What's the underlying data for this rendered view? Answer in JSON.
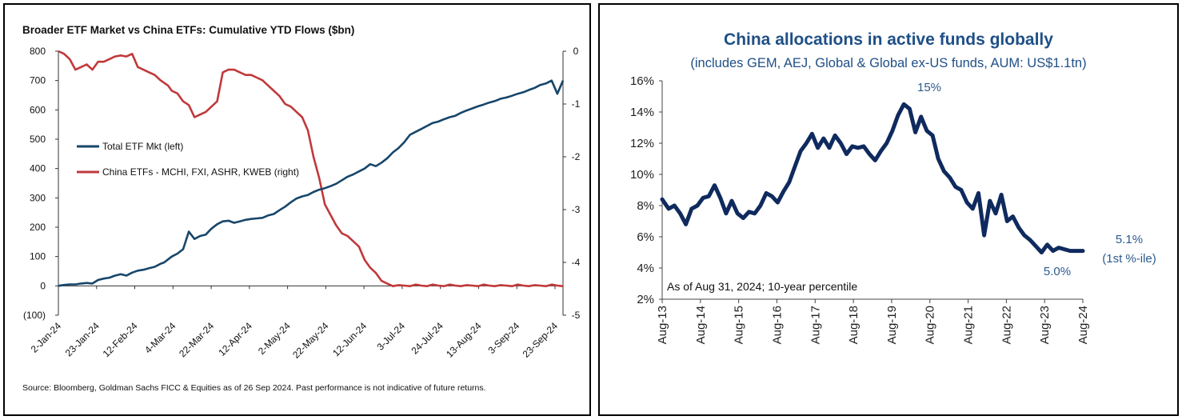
{
  "colors": {
    "navy": "#17466a",
    "red": "#c0393b",
    "right_line": "#0f2a5e",
    "right_title": "#1f4f86",
    "right_annot": "#2c5a8f"
  },
  "chart_data": [
    {
      "type": "line",
      "title": "Broader ETF Market vs China ETFs: Cumulative YTD Flows ($bn)",
      "x_tick_labels": [
        "2-Jan-24",
        "23-Jan-24",
        "12-Feb-24",
        "4-Mar-24",
        "22-Mar-24",
        "12-Apr-24",
        "2-May-24",
        "22-May-24",
        "12-Jun-24",
        "3-Jul-24",
        "24-Jul-24",
        "13-Aug-24",
        "3-Sep-24",
        "23-Sep-24"
      ],
      "y_left": {
        "ticks": [
          "800",
          "700",
          "600",
          "500",
          "400",
          "300",
          "200",
          "100",
          "0",
          "(100)"
        ],
        "ylim": [
          -100,
          800
        ]
      },
      "y_right": {
        "ticks": [
          "0",
          "-1",
          "-2",
          "-3",
          "-4",
          "-5"
        ],
        "ylim": [
          -5,
          0
        ]
      },
      "legend": [
        "Total ETF Mkt (left)",
        "China ETFs - MCHI, FXI, ASHR, KWEB (right)"
      ],
      "source": "Source: Bloomberg, Goldman Sachs FICC & Equities as of 26 Sep 2024. Past performance is not indicative of future returns.",
      "series": [
        {
          "name": "Total ETF Mkt (left)",
          "axis": "left",
          "x": [
            0,
            3,
            6,
            9,
            12,
            15,
            18,
            21,
            24,
            27,
            30,
            33,
            36,
            39,
            42,
            45,
            48,
            51,
            54,
            56,
            58,
            60,
            63,
            66,
            69,
            72,
            75,
            78,
            81,
            84,
            87,
            90,
            93,
            96,
            99,
            102,
            105,
            108,
            111,
            114,
            117,
            120,
            123,
            126,
            129,
            132,
            135,
            138,
            141,
            144,
            147,
            150,
            153,
            156,
            159,
            162,
            165,
            168,
            171,
            174,
            177,
            180,
            183,
            186,
            189,
            192,
            195,
            198,
            201,
            204,
            207,
            210,
            213,
            216,
            219,
            222,
            225,
            228,
            231,
            234,
            237,
            240,
            243,
            246,
            249,
            252,
            255,
            258,
            261,
            264,
            267
          ],
          "values": [
            0,
            3,
            5,
            5,
            8,
            10,
            8,
            20,
            25,
            28,
            35,
            40,
            35,
            45,
            52,
            55,
            60,
            65,
            75,
            80,
            90,
            100,
            110,
            125,
            185,
            160,
            170,
            175,
            195,
            210,
            220,
            222,
            215,
            220,
            225,
            228,
            230,
            232,
            240,
            245,
            258,
            270,
            285,
            298,
            305,
            310,
            320,
            328,
            333,
            340,
            348,
            360,
            372,
            380,
            390,
            400,
            415,
            408,
            420,
            435,
            455,
            470,
            490,
            515,
            525,
            535,
            545,
            555,
            560,
            568,
            575,
            580,
            590,
            598,
            605,
            612,
            618,
            625,
            630,
            638,
            642,
            648,
            655,
            660,
            668,
            675,
            685,
            690,
            700,
            655,
            700
          ]
        },
        {
          "name": "China ETFs - MCHI, FXI, ASHR, KWEB (right)",
          "axis": "right",
          "x": [
            0,
            3,
            6,
            9,
            12,
            15,
            18,
            21,
            24,
            27,
            30,
            33,
            36,
            39,
            42,
            45,
            48,
            51,
            54,
            56,
            58,
            60,
            63,
            66,
            69,
            72,
            75,
            78,
            81,
            84,
            87,
            90,
            93,
            96,
            99,
            102,
            105,
            108,
            111,
            114,
            117,
            120,
            123,
            126,
            129,
            132,
            135,
            138,
            141,
            144,
            147,
            150,
            153,
            156,
            159,
            162,
            165,
            168,
            171,
            174,
            177,
            180,
            183,
            186,
            189,
            192,
            195,
            198,
            201,
            204,
            207,
            210,
            213,
            216,
            219,
            222,
            225,
            228,
            231,
            234,
            237,
            240,
            243,
            246,
            249,
            252,
            255,
            258,
            261,
            264,
            267
          ],
          "values": [
            0,
            -0.05,
            -0.15,
            -0.35,
            -0.3,
            -0.25,
            -0.35,
            -0.2,
            -0.2,
            -0.15,
            -0.1,
            -0.08,
            -0.1,
            -0.05,
            -0.3,
            -0.35,
            -0.4,
            -0.45,
            -0.55,
            -0.6,
            -0.65,
            -0.75,
            -0.8,
            -0.95,
            -1.02,
            -1.25,
            -1.2,
            -1.15,
            -1.05,
            -0.95,
            -0.4,
            -0.35,
            -0.35,
            -0.4,
            -0.45,
            -0.45,
            -0.5,
            -0.55,
            -0.65,
            -0.75,
            -0.85,
            -1.0,
            -1.05,
            -1.15,
            -1.25,
            -1.5,
            -2.0,
            -2.4,
            -2.9,
            -3.1,
            -3.3,
            -3.45,
            -3.5,
            -3.6,
            -3.7,
            -3.95,
            -4.1,
            -4.2,
            -4.35,
            -4.4,
            -4.45,
            -4.43,
            -4.44,
            -4.45,
            -4.42,
            -4.44,
            -4.45,
            -4.42,
            -4.44,
            -4.45,
            -4.42,
            -4.44,
            -4.45,
            -4.43,
            -4.44,
            -4.45,
            -4.42,
            -4.44,
            -4.45,
            -4.43,
            -4.44,
            -4.45,
            -4.42,
            -4.44,
            -4.45,
            -4.43,
            -4.44,
            -4.45,
            -4.42,
            -4.44,
            -4.45
          ]
        }
      ]
    },
    {
      "type": "line",
      "title": "China allocations in active funds globally",
      "subtitle": "(includes GEM, AEJ, Global & Global ex-US funds, AUM: US$1.1tn)",
      "x_tick_labels": [
        "Aug-13",
        "Aug-14",
        "Aug-15",
        "Aug-16",
        "Aug-17",
        "Aug-18",
        "Aug-19",
        "Aug-20",
        "Aug-21",
        "Aug-22",
        "Aug-23",
        "Aug-24"
      ],
      "y_ticks": [
        "16%",
        "14%",
        "12%",
        "10%",
        "8%",
        "6%",
        "4%",
        "2%"
      ],
      "ylim": [
        2,
        16
      ],
      "note": "As of Aug 31, 2024; 10-year percentile",
      "annotations": {
        "peak": "15%",
        "low": "5.0%",
        "last_value": "5.1%",
        "last_pct": "(1st %-ile)"
      },
      "series": [
        {
          "name": "China allocation (%)",
          "x": [
            2013.58,
            2013.75,
            2013.9,
            2014.05,
            2014.2,
            2014.35,
            2014.5,
            2014.65,
            2014.8,
            2014.95,
            2015.1,
            2015.25,
            2015.4,
            2015.55,
            2015.7,
            2015.85,
            2016.0,
            2016.15,
            2016.3,
            2016.45,
            2016.6,
            2016.75,
            2016.9,
            2017.05,
            2017.2,
            2017.35,
            2017.5,
            2017.65,
            2017.8,
            2017.95,
            2018.1,
            2018.25,
            2018.4,
            2018.55,
            2018.7,
            2018.85,
            2019.0,
            2019.15,
            2019.3,
            2019.45,
            2019.6,
            2019.75,
            2019.9,
            2020.05,
            2020.2,
            2020.35,
            2020.5,
            2020.65,
            2020.8,
            2020.95,
            2021.1,
            2021.25,
            2021.4,
            2021.55,
            2021.7,
            2021.85,
            2022.0,
            2022.15,
            2022.3,
            2022.45,
            2022.6,
            2022.75,
            2022.9,
            2023.05,
            2023.2,
            2023.35,
            2023.5,
            2023.65,
            2023.8,
            2023.95,
            2024.1,
            2024.25,
            2024.4,
            2024.58
          ],
          "values": [
            8.4,
            7.8,
            8.0,
            7.5,
            6.8,
            7.8,
            8.0,
            8.5,
            8.6,
            9.3,
            8.5,
            7.5,
            8.3,
            7.5,
            7.2,
            7.6,
            7.5,
            8.0,
            8.8,
            8.6,
            8.2,
            8.9,
            9.5,
            10.5,
            11.5,
            12.0,
            12.6,
            11.7,
            12.3,
            11.7,
            12.5,
            12.0,
            11.3,
            11.8,
            11.7,
            11.8,
            11.3,
            10.9,
            11.5,
            12.0,
            12.8,
            13.8,
            14.5,
            14.2,
            12.7,
            13.7,
            12.8,
            12.5,
            11.0,
            10.2,
            9.8,
            9.2,
            9.0,
            8.2,
            7.8,
            8.8,
            6.1,
            8.3,
            7.5,
            8.7,
            7.0,
            7.3,
            6.6,
            6.1,
            5.8,
            5.4,
            5.0,
            5.5,
            5.1,
            5.3,
            5.2,
            5.1,
            5.1,
            5.1
          ]
        }
      ]
    }
  ]
}
